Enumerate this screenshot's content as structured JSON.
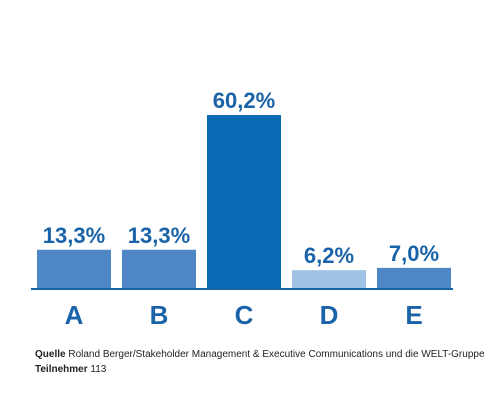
{
  "chart_data": {
    "type": "bar",
    "categories": [
      "A",
      "B",
      "C",
      "D",
      "E"
    ],
    "values": [
      13.3,
      13.3,
      60.2,
      6.2,
      7.0
    ],
    "value_labels": [
      "13,3%",
      "13,3%",
      "60,2%",
      "6,2%",
      "7,0%"
    ],
    "colors": [
      "#4f86c6",
      "#4f86c6",
      "#0a6bb5",
      "#9fc2e5",
      "#4f86c6"
    ],
    "ylim": [
      0,
      60.2
    ],
    "grid": false,
    "legend": "none"
  },
  "footer": {
    "source_label": "Quelle",
    "source_text": "Roland Berger/Stakeholder Management & Executive Communications  und die WELT-Gruppe",
    "participants_label": "Teilnehmer",
    "participants_value": "113"
  }
}
